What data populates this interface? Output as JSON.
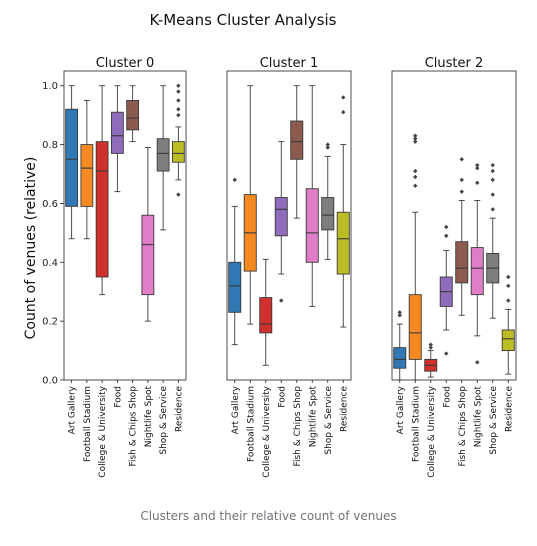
{
  "figure_title": "K-Means Cluster Analysis",
  "caption": "Clusters and their relative count of venues",
  "chart_data": {
    "type": "box",
    "ylabel": "Count of venues (relative)",
    "ylim": [
      0,
      1.05
    ],
    "yticks": [
      "0.0",
      "0.2",
      "0.4",
      "0.6",
      "0.8",
      "1.0"
    ],
    "shared_y": true,
    "grid": false,
    "categories": [
      "Art Gallery",
      "Football Stadium",
      "College & University",
      "Food",
      "Fish & Chips Shop",
      "Nightlife Spot",
      "Shop & Service",
      "Residence"
    ],
    "colors": [
      "#2f78b4",
      "#f48a21",
      "#d0312d",
      "#8e6bbb",
      "#8c5a4f",
      "#e07dc8",
      "#7e7e7e",
      "#bcbd24"
    ],
    "panels": [
      {
        "title": "Cluster 0",
        "boxes": [
          {
            "q1": 0.59,
            "median": 0.75,
            "q3": 0.92,
            "whisker_low": 0.48,
            "whisker_high": 1.0,
            "outliers": []
          },
          {
            "q1": 0.59,
            "median": 0.72,
            "q3": 0.8,
            "whisker_low": 0.48,
            "whisker_high": 0.95,
            "outliers": []
          },
          {
            "q1": 0.35,
            "median": 0.71,
            "q3": 0.81,
            "whisker_low": 0.29,
            "whisker_high": 1.0,
            "outliers": []
          },
          {
            "q1": 0.77,
            "median": 0.83,
            "q3": 0.91,
            "whisker_low": 0.64,
            "whisker_high": 1.0,
            "outliers": []
          },
          {
            "q1": 0.85,
            "median": 0.89,
            "q3": 0.95,
            "whisker_low": 0.81,
            "whisker_high": 1.0,
            "outliers": []
          },
          {
            "q1": 0.29,
            "median": 0.46,
            "q3": 0.56,
            "whisker_low": 0.2,
            "whisker_high": 0.79,
            "outliers": []
          },
          {
            "q1": 0.71,
            "median": 0.77,
            "q3": 0.82,
            "whisker_low": 0.51,
            "whisker_high": 1.0,
            "outliers": []
          },
          {
            "q1": 0.74,
            "median": 0.77,
            "q3": 0.81,
            "whisker_low": 0.68,
            "whisker_high": 0.86,
            "outliers": [
              0.63,
              0.9,
              0.92,
              0.95,
              0.98,
              1.0
            ]
          }
        ]
      },
      {
        "title": "Cluster 1",
        "boxes": [
          {
            "q1": 0.23,
            "median": 0.32,
            "q3": 0.4,
            "whisker_low": 0.12,
            "whisker_high": 0.59,
            "outliers": [
              0.68
            ]
          },
          {
            "q1": 0.37,
            "median": 0.5,
            "q3": 0.63,
            "whisker_low": 0.19,
            "whisker_high": 1.0,
            "outliers": []
          },
          {
            "q1": 0.16,
            "median": 0.19,
            "q3": 0.28,
            "whisker_low": 0.05,
            "whisker_high": 0.41,
            "outliers": []
          },
          {
            "q1": 0.49,
            "median": 0.58,
            "q3": 0.62,
            "whisker_low": 0.36,
            "whisker_high": 0.81,
            "outliers": [
              0.27
            ]
          },
          {
            "q1": 0.75,
            "median": 0.81,
            "q3": 0.88,
            "whisker_low": 0.55,
            "whisker_high": 1.0,
            "outliers": []
          },
          {
            "q1": 0.4,
            "median": 0.5,
            "q3": 0.65,
            "whisker_low": 0.25,
            "whisker_high": 1.0,
            "outliers": []
          },
          {
            "q1": 0.51,
            "median": 0.56,
            "q3": 0.62,
            "whisker_low": 0.41,
            "whisker_high": 0.76,
            "outliers": [
              0.79,
              0.8
            ]
          },
          {
            "q1": 0.36,
            "median": 0.48,
            "q3": 0.57,
            "whisker_low": 0.18,
            "whisker_high": 0.8,
            "outliers": [
              0.91,
              0.96
            ]
          }
        ]
      },
      {
        "title": "Cluster 2",
        "boxes": [
          {
            "q1": 0.04,
            "median": 0.07,
            "q3": 0.11,
            "whisker_low": 0.0,
            "whisker_high": 0.19,
            "outliers": [
              0.22,
              0.23
            ]
          },
          {
            "q1": 0.07,
            "median": 0.16,
            "q3": 0.29,
            "whisker_low": 0.0,
            "whisker_high": 0.57,
            "outliers": [
              0.66,
              0.69,
              0.71,
              0.81,
              0.82,
              0.83
            ]
          },
          {
            "q1": 0.03,
            "median": 0.05,
            "q3": 0.07,
            "whisker_low": 0.01,
            "whisker_high": 0.1,
            "outliers": [
              0.11,
              0.12
            ]
          },
          {
            "q1": 0.25,
            "median": 0.3,
            "q3": 0.35,
            "whisker_low": 0.17,
            "whisker_high": 0.44,
            "outliers": [
              0.09,
              0.49,
              0.52
            ]
          },
          {
            "q1": 0.33,
            "median": 0.38,
            "q3": 0.47,
            "whisker_low": 0.22,
            "whisker_high": 0.61,
            "outliers": [
              0.64,
              0.68,
              0.75
            ]
          },
          {
            "q1": 0.29,
            "median": 0.38,
            "q3": 0.45,
            "whisker_low": 0.15,
            "whisker_high": 0.61,
            "outliers": [
              0.06,
              0.67,
              0.72,
              0.73
            ]
          },
          {
            "q1": 0.33,
            "median": 0.38,
            "q3": 0.43,
            "whisker_low": 0.21,
            "whisker_high": 0.55,
            "outliers": [
              0.58,
              0.63,
              0.68,
              0.71,
              0.73
            ]
          },
          {
            "q1": 0.1,
            "median": 0.14,
            "q3": 0.17,
            "whisker_low": 0.02,
            "whisker_high": 0.24,
            "outliers": [
              0.27,
              0.32,
              0.35
            ]
          }
        ]
      }
    ]
  }
}
